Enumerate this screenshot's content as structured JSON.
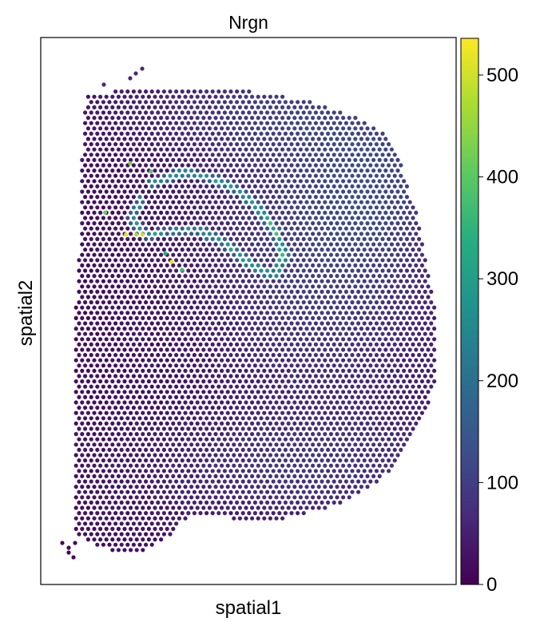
{
  "chart_data": {
    "type": "scatter",
    "title": "Nrgn",
    "xlabel": "spatial1",
    "ylabel": "spatial2",
    "colormap": "viridis",
    "colorbar": {
      "min": 0,
      "max": 536,
      "ticks": [
        "0",
        "100",
        "200",
        "300",
        "400",
        "500"
      ],
      "tick_values": [
        0,
        100,
        200,
        300,
        400,
        500
      ],
      "placement": "right"
    },
    "grid": false,
    "spot_layout": "hexagonal spots covering a tissue section; low expression (purple) over most spots, moderate (blue) in the upper-right and lower-middle regions, high (green–yellow) along a thin curved band in the upper-left",
    "highlights": [
      {
        "x": 0.315,
        "y": 0.59,
        "value": 520
      },
      {
        "x": 0.205,
        "y": 0.64,
        "value": 510
      },
      {
        "x": 0.245,
        "y": 0.64,
        "value": 500
      },
      {
        "x": 0.23,
        "y": 0.64,
        "value": 470
      },
      {
        "x": 0.215,
        "y": 0.77,
        "value": 430
      },
      {
        "x": 0.155,
        "y": 0.68,
        "value": 420
      },
      {
        "x": 0.265,
        "y": 0.755,
        "value": 400
      },
      {
        "x": 0.34,
        "y": 0.575,
        "value": 360
      },
      {
        "x": 0.3,
        "y": 0.605,
        "value": 340
      }
    ]
  }
}
